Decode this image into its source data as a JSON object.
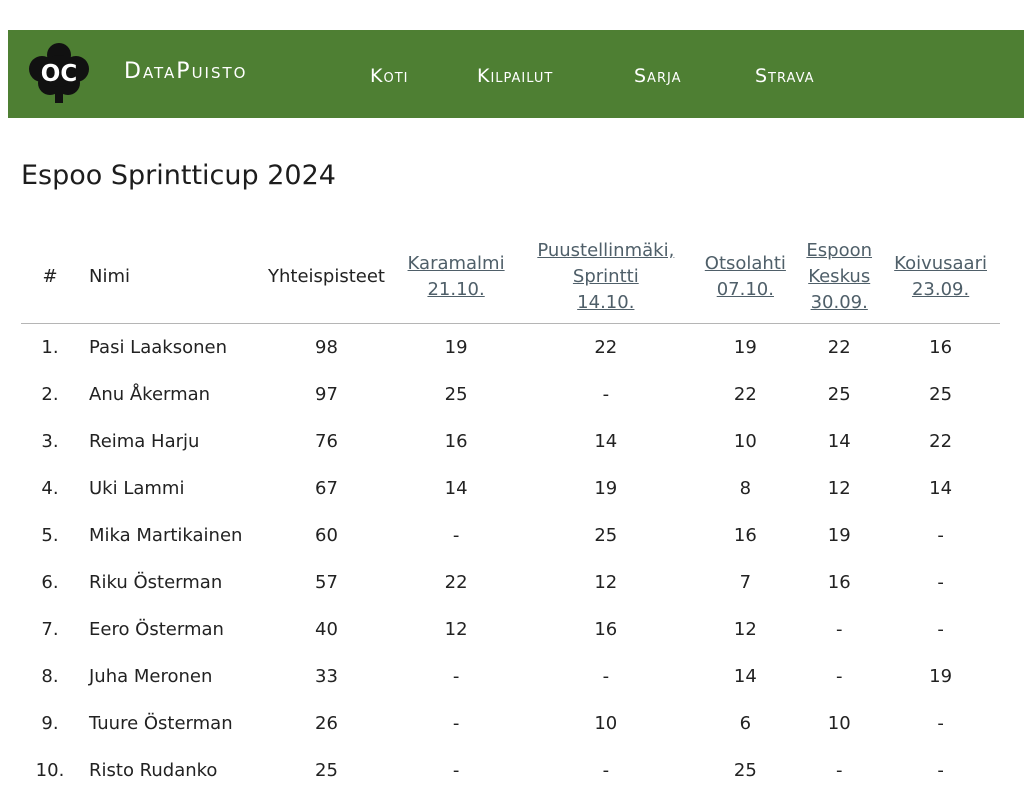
{
  "site": {
    "logo_text": "OC",
    "brand": "DataPuisto",
    "nav": [
      {
        "label": "Koti"
      },
      {
        "label": "Kilpailut"
      },
      {
        "label": "Sarja"
      },
      {
        "label": "Strava"
      }
    ]
  },
  "page_title": "Espoo Sprintticup 2024",
  "colors": {
    "nav_bg": "#4e7f33",
    "link": "#4f5f69"
  },
  "table": {
    "headers": {
      "rank": "#",
      "name": "Nimi",
      "total": "Yhteispisteet",
      "events": [
        {
          "l1": "Karamalmi",
          "l2": "21.10.",
          "l3": ""
        },
        {
          "l1": "Puustellinmäki,",
          "l2": "Sprintti",
          "l3": "14.10."
        },
        {
          "l1": "Otsolahti",
          "l2": "07.10.",
          "l3": ""
        },
        {
          "l1": "Espoon",
          "l2": "Keskus",
          "l3": "30.09."
        },
        {
          "l1": "Koivusaari",
          "l2": "23.09.",
          "l3": ""
        }
      ]
    },
    "rows": [
      {
        "rank": "1.",
        "name": "Pasi Laaksonen",
        "total": "98",
        "scores": [
          "19",
          "22",
          "19",
          "22",
          "16"
        ]
      },
      {
        "rank": "2.",
        "name": "Anu Åkerman",
        "total": "97",
        "scores": [
          "25",
          "-",
          "22",
          "25",
          "25"
        ]
      },
      {
        "rank": "3.",
        "name": "Reima Harju",
        "total": "76",
        "scores": [
          "16",
          "14",
          "10",
          "14",
          "22"
        ]
      },
      {
        "rank": "4.",
        "name": "Uki Lammi",
        "total": "67",
        "scores": [
          "14",
          "19",
          "8",
          "12",
          "14"
        ]
      },
      {
        "rank": "5.",
        "name": "Mika Martikainen",
        "total": "60",
        "scores": [
          "-",
          "25",
          "16",
          "19",
          "-"
        ]
      },
      {
        "rank": "6.",
        "name": "Riku Österman",
        "total": "57",
        "scores": [
          "22",
          "12",
          "7",
          "16",
          "-"
        ]
      },
      {
        "rank": "7.",
        "name": "Eero Österman",
        "total": "40",
        "scores": [
          "12",
          "16",
          "12",
          "-",
          "-"
        ]
      },
      {
        "rank": "8.",
        "name": "Juha Meronen",
        "total": "33",
        "scores": [
          "-",
          "-",
          "14",
          "-",
          "19"
        ]
      },
      {
        "rank": "9.",
        "name": "Tuure Österman",
        "total": "26",
        "scores": [
          "-",
          "10",
          "6",
          "10",
          "-"
        ]
      },
      {
        "rank": "10.",
        "name": "Risto Rudanko",
        "total": "25",
        "scores": [
          "-",
          "-",
          "25",
          "-",
          "-"
        ]
      }
    ]
  }
}
